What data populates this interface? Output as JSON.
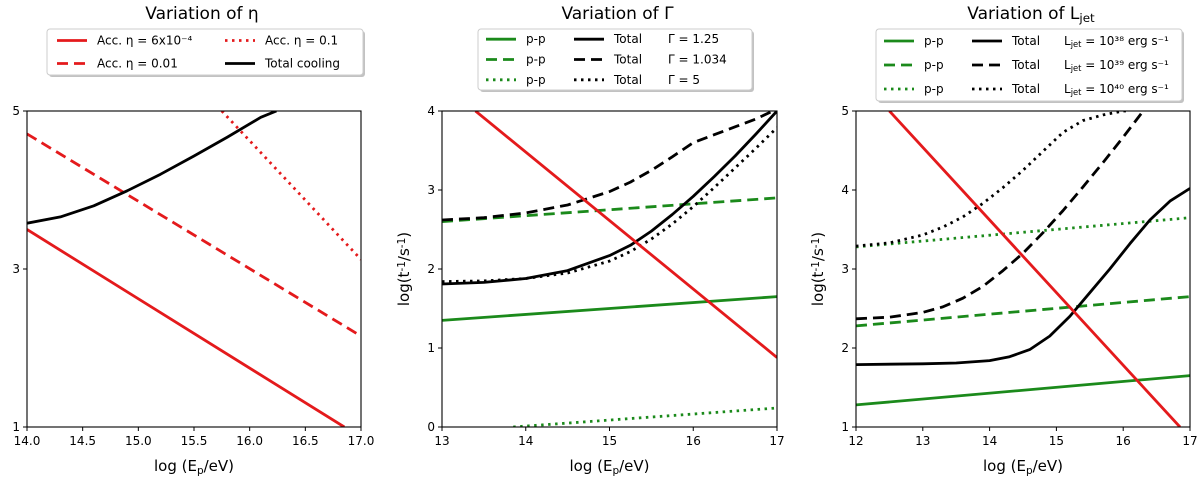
{
  "chart_data": [
    {
      "type": "line",
      "title": "Variation of η",
      "xlabel": "log (E_p/eV)",
      "ylabel": "log(t^-1/s^-1)",
      "xlim": [
        14.0,
        17.0
      ],
      "ylim": [
        1,
        5
      ],
      "xticks": [
        14.0,
        14.5,
        15.0,
        15.5,
        16.0,
        16.5,
        17.0
      ],
      "xtick_labels": [
        "14.0",
        "14.5",
        "15.0",
        "15.5",
        "16.0",
        "16.5",
        "17.0"
      ],
      "yticks": [
        1,
        3,
        5
      ],
      "ytick_labels": [
        "1",
        "3",
        "5"
      ],
      "legend_position": "top",
      "legend": [
        "Acc. η = 6x10⁻⁴",
        "Acc. η = 0.1",
        "Acc. η = 0.01",
        "Total cooling"
      ],
      "series": [
        {
          "name": "Acc. η = 6x10⁻⁴",
          "color": "#e41a1c",
          "dash": "solid",
          "x": [
            14.0,
            16.85
          ],
          "y": [
            3.5,
            1.0
          ]
        },
        {
          "name": "Acc. η = 0.01",
          "color": "#e41a1c",
          "dash": "dashed",
          "x": [
            14.0,
            17.0
          ],
          "y": [
            4.71,
            2.15
          ]
        },
        {
          "name": "Acc. η = 0.1",
          "color": "#e41a1c",
          "dash": "dotted",
          "x": [
            15.75,
            17.0
          ],
          "y": [
            5.0,
            3.12
          ]
        },
        {
          "name": "Total cooling",
          "color": "#000000",
          "dash": "solid",
          "x": [
            14.0,
            14.3,
            14.6,
            14.9,
            15.2,
            15.5,
            15.8,
            16.1,
            16.24
          ],
          "y": [
            3.58,
            3.66,
            3.8,
            3.99,
            4.2,
            4.43,
            4.67,
            4.92,
            5.0
          ]
        }
      ]
    },
    {
      "type": "line",
      "title": "Variation of Γ",
      "xlabel": "log (E_p/eV)",
      "ylabel": "log(t^-1/s^-1)",
      "xlim": [
        13,
        17
      ],
      "ylim": [
        0,
        4
      ],
      "xticks": [
        13,
        14,
        15,
        16,
        17
      ],
      "xtick_labels": [
        "13",
        "14",
        "15",
        "16",
        "17"
      ],
      "yticks": [
        0,
        1,
        2,
        3,
        4
      ],
      "ytick_labels": [
        "0",
        "1",
        "2",
        "3",
        "4"
      ],
      "legend_position": "top",
      "legend": [
        "p-p",
        "Total",
        "Γ = 1.25",
        "p-p",
        "Total",
        "Γ = 1.034",
        "p-p",
        "Total",
        "Γ = 5"
      ],
      "series": [
        {
          "name": "p-p Γ=1.25",
          "color": "#1b8a1b",
          "dash": "solid",
          "x": [
            13,
            17
          ],
          "y": [
            1.35,
            1.65
          ]
        },
        {
          "name": "p-p Γ=1.034",
          "color": "#1b8a1b",
          "dash": "dashed",
          "x": [
            13,
            17
          ],
          "y": [
            2.6,
            2.9
          ]
        },
        {
          "name": "p-p Γ=5",
          "color": "#1b8a1b",
          "dash": "dotted",
          "x": [
            13.85,
            17
          ],
          "y": [
            0.0,
            0.24
          ]
        },
        {
          "name": "Total Γ=1.25",
          "color": "#000000",
          "dash": "solid",
          "x": [
            13,
            13.5,
            14,
            14.5,
            15,
            15.25,
            15.5,
            15.75,
            16,
            16.25,
            16.5,
            16.75,
            17
          ],
          "y": [
            1.81,
            1.83,
            1.88,
            1.98,
            2.17,
            2.3,
            2.48,
            2.69,
            2.92,
            3.17,
            3.43,
            3.71,
            4.0
          ]
        },
        {
          "name": "Total Γ=1.034",
          "color": "#000000",
          "dash": "dashed",
          "x": [
            13,
            13.5,
            14,
            14.5,
            15,
            15.25,
            15.5,
            15.75,
            16,
            16.25,
            16.5,
            16.75,
            16.95
          ],
          "y": [
            2.62,
            2.65,
            2.71,
            2.81,
            2.98,
            3.1,
            3.25,
            3.42,
            3.6,
            3.7,
            3.8,
            3.9,
            4.0
          ]
        },
        {
          "name": "Total Γ=5",
          "color": "#000000",
          "dash": "dotted",
          "x": [
            13,
            13.5,
            14,
            14.5,
            15,
            15.25,
            15.5,
            15.75,
            16,
            16.25,
            16.5,
            16.75,
            17
          ],
          "y": [
            1.84,
            1.85,
            1.88,
            1.95,
            2.1,
            2.22,
            2.38,
            2.57,
            2.79,
            3.03,
            3.28,
            3.53,
            3.79
          ]
        },
        {
          "name": "Acceleration",
          "color": "#e41a1c",
          "dash": "solid",
          "x": [
            13.4,
            17
          ],
          "y": [
            4.0,
            0.88
          ]
        }
      ]
    },
    {
      "type": "line",
      "title": "Variation of L_jet",
      "xlabel": "log (E_p/eV)",
      "ylabel": "log(t^-1/s^-1)",
      "xlim": [
        12,
        17
      ],
      "ylim": [
        1,
        5
      ],
      "xticks": [
        12,
        13,
        14,
        15,
        16,
        17
      ],
      "xtick_labels": [
        "12",
        "13",
        "14",
        "15",
        "16",
        "17"
      ],
      "yticks": [
        1,
        2,
        3,
        4,
        5
      ],
      "ytick_labels": [
        "1",
        "2",
        "3",
        "4",
        "5"
      ],
      "legend_position": "top",
      "legend": [
        "p-p",
        "Total",
        "L_jet = 10^38 erg s^-1",
        "p-p",
        "Total",
        "L_jet = 10^39 erg s^-1",
        "p-p",
        "Total",
        "L_jet = 10^40 erg s^-1"
      ],
      "series": [
        {
          "name": "p-p 1e38",
          "color": "#1b8a1b",
          "dash": "solid",
          "x": [
            12,
            17
          ],
          "y": [
            1.28,
            1.65
          ]
        },
        {
          "name": "p-p 1e39",
          "color": "#1b8a1b",
          "dash": "dashed",
          "x": [
            12,
            17
          ],
          "y": [
            2.28,
            2.65
          ]
        },
        {
          "name": "p-p 1e40",
          "color": "#1b8a1b",
          "dash": "dotted",
          "x": [
            12,
            17
          ],
          "y": [
            3.28,
            3.65
          ]
        },
        {
          "name": "Total 1e38",
          "color": "#000000",
          "dash": "solid",
          "x": [
            12,
            13,
            13.5,
            14,
            14.3,
            14.6,
            14.9,
            15.2,
            15.5,
            15.8,
            16.1,
            16.4,
            16.7,
            17
          ],
          "y": [
            1.79,
            1.8,
            1.81,
            1.84,
            1.89,
            1.98,
            2.15,
            2.4,
            2.7,
            3.0,
            3.32,
            3.62,
            3.86,
            4.02
          ]
        },
        {
          "name": "Total 1e39",
          "color": "#000000",
          "dash": "dashed",
          "x": [
            12,
            12.5,
            13,
            13.3,
            13.6,
            13.9,
            14.2,
            14.5,
            14.8,
            15.1,
            15.4,
            15.7,
            16.0,
            16.3
          ],
          "y": [
            2.37,
            2.39,
            2.45,
            2.52,
            2.63,
            2.78,
            2.98,
            3.2,
            3.46,
            3.74,
            4.04,
            4.35,
            4.67,
            5.0
          ]
        },
        {
          "name": "Total 1e40",
          "color": "#000000",
          "dash": "dotted",
          "x": [
            12,
            12.5,
            13,
            13.3,
            13.6,
            13.9,
            14.2,
            14.5,
            14.8,
            15.1,
            15.4,
            15.7,
            16.0,
            16.05
          ],
          "y": [
            3.29,
            3.33,
            3.43,
            3.53,
            3.66,
            3.83,
            4.03,
            4.25,
            4.49,
            4.73,
            4.88,
            4.95,
            5.0,
            5.0
          ]
        },
        {
          "name": "Acceleration",
          "color": "#e41a1c",
          "dash": "solid",
          "x": [
            12.5,
            16.85
          ],
          "y": [
            5.0,
            1.0
          ]
        }
      ]
    }
  ],
  "legends": [
    {
      "rows": [
        [
          {
            "color": "#e41a1c",
            "dash": "solid",
            "label": "Acc. η = 6x10⁻⁴"
          },
          {
            "color": "#e41a1c",
            "dash": "dotted",
            "label": "Acc. η = 0.1"
          }
        ],
        [
          {
            "color": "#e41a1c",
            "dash": "dashed",
            "label": "Acc. η = 0.01"
          },
          {
            "color": "#000000",
            "dash": "solid",
            "label": "Total cooling"
          }
        ]
      ]
    },
    {
      "rows": [
        [
          {
            "color": "#1b8a1b",
            "dash": "solid",
            "label": "p-p"
          },
          {
            "color": "#000000",
            "dash": "solid",
            "label": "Total"
          },
          {
            "color": "",
            "dash": "",
            "label": "Γ = 1.25"
          }
        ],
        [
          {
            "color": "#1b8a1b",
            "dash": "dashed",
            "label": "p-p"
          },
          {
            "color": "#000000",
            "dash": "dashed",
            "label": "Total"
          },
          {
            "color": "",
            "dash": "",
            "label": "Γ = 1.034"
          }
        ],
        [
          {
            "color": "#1b8a1b",
            "dash": "dotted",
            "label": "p-p"
          },
          {
            "color": "#000000",
            "dash": "dotted",
            "label": "Total"
          },
          {
            "color": "",
            "dash": "",
            "label": "Γ = 5"
          }
        ]
      ]
    },
    {
      "rows": [
        [
          {
            "color": "#1b8a1b",
            "dash": "solid",
            "label": "p-p"
          },
          {
            "color": "#000000",
            "dash": "solid",
            "label": "Total"
          },
          {
            "color": "",
            "dash": "",
            "label": "L_jet = 10³⁸ erg s⁻¹"
          }
        ],
        [
          {
            "color": "#1b8a1b",
            "dash": "dashed",
            "label": "p-p"
          },
          {
            "color": "#000000",
            "dash": "dashed",
            "label": "Total"
          },
          {
            "color": "",
            "dash": "",
            "label": "L_jet = 10³⁹ erg s⁻¹"
          }
        ],
        [
          {
            "color": "#1b8a1b",
            "dash": "dotted",
            "label": "p-p"
          },
          {
            "color": "#000000",
            "dash": "dotted",
            "label": "Total"
          },
          {
            "color": "",
            "dash": "",
            "label": "L_jet = 10⁴⁰ erg s⁻¹"
          }
        ]
      ]
    }
  ]
}
